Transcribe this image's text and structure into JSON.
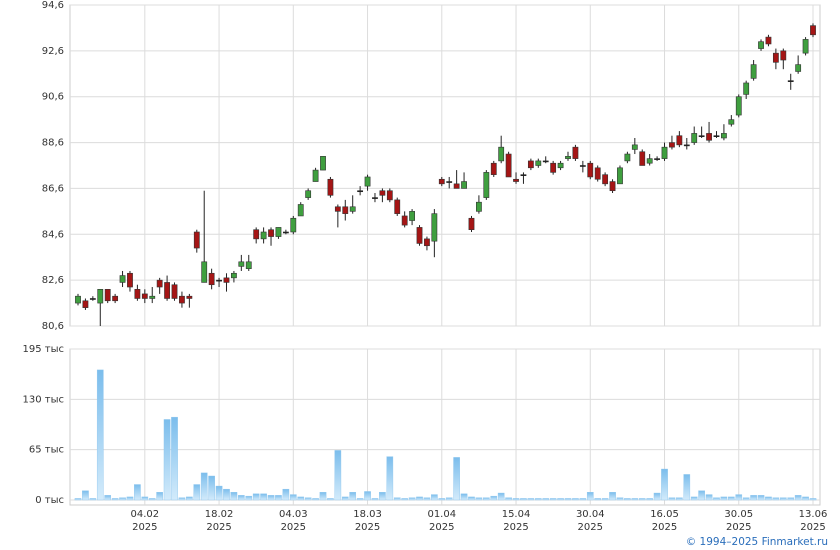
{
  "chart_data": [
    {
      "type": "candlestick",
      "up_color": "#3f9f3f",
      "down_color": "#a51515",
      "grid": true,
      "ylim": [
        80.6,
        94.6
      ],
      "yticks": [
        {
          "value": 80.6,
          "label": "80,6"
        },
        {
          "value": 82.6,
          "label": "82,6"
        },
        {
          "value": 84.6,
          "label": "84,6"
        },
        {
          "value": 86.6,
          "label": "86,6"
        },
        {
          "value": 88.6,
          "label": "88,6"
        },
        {
          "value": 90.6,
          "label": "90,6"
        },
        {
          "value": 92.6,
          "label": "92,6"
        },
        {
          "value": 94.6,
          "label": "94,6"
        }
      ],
      "open": [
        81.6,
        81.7,
        81.8,
        81.6,
        82.2,
        81.9,
        82.5,
        82.9,
        82.2,
        82.0,
        81.8,
        82.6,
        82.5,
        82.4,
        81.9,
        81.9,
        84.7,
        82.5,
        82.9,
        82.6,
        82.7,
        82.7,
        83.2,
        83.1,
        84.8,
        84.4,
        84.8,
        84.5,
        84.7,
        84.7,
        85.4,
        86.2,
        86.9,
        87.4,
        87.0,
        85.8,
        85.8,
        85.6,
        86.5,
        86.7,
        86.2,
        86.5,
        86.5,
        86.1,
        85.4,
        85.2,
        84.9,
        84.4,
        84.3,
        87.0,
        86.9,
        86.8,
        86.6,
        85.3,
        85.6,
        86.2,
        87.7,
        87.8,
        88.1,
        87.0,
        87.2,
        87.8,
        87.6,
        87.8,
        87.7,
        87.5,
        87.9,
        88.4,
        87.6,
        87.7,
        87.5,
        87.2,
        86.9,
        86.8,
        87.8,
        88.3,
        88.2,
        87.7,
        87.9,
        87.9,
        88.6,
        88.9,
        88.5,
        88.6,
        88.9,
        89.0,
        88.9,
        88.8,
        89.4,
        89.8,
        90.7,
        91.4,
        92.7,
        93.2,
        92.5,
        92.6,
        91.3,
        91.7,
        92.5,
        93.7
      ],
      "high": [
        82.0,
        81.8,
        81.9,
        82.2,
        82.2,
        82.0,
        83.0,
        83.0,
        82.4,
        82.2,
        82.3,
        82.7,
        82.8,
        82.5,
        82.1,
        82.0,
        84.8,
        86.5,
        83.1,
        82.7,
        82.9,
        83.0,
        83.7,
        83.7,
        84.9,
        84.9,
        84.9,
        84.9,
        84.8,
        85.4,
        86.0,
        86.6,
        87.5,
        88.0,
        87.1,
        85.9,
        86.1,
        86.3,
        86.7,
        87.2,
        86.4,
        86.6,
        86.6,
        86.2,
        85.6,
        85.7,
        85.0,
        84.5,
        85.7,
        87.1,
        87.1,
        87.4,
        87.3,
        85.4,
        86.3,
        87.4,
        87.8,
        88.9,
        88.2,
        87.3,
        87.3,
        87.9,
        87.9,
        88.0,
        87.8,
        87.8,
        88.2,
        88.5,
        87.8,
        87.8,
        87.6,
        87.3,
        87.0,
        87.6,
        88.2,
        88.8,
        88.3,
        88.1,
        88.0,
        88.6,
        88.9,
        89.1,
        88.8,
        89.3,
        89.3,
        89.5,
        89.1,
        89.4,
        89.8,
        90.7,
        91.3,
        92.2,
        93.1,
        93.3,
        92.7,
        92.7,
        91.6,
        92.4,
        93.2,
        93.8
      ],
      "low": [
        81.5,
        81.3,
        81.7,
        80.6,
        81.6,
        81.6,
        82.3,
        82.1,
        81.7,
        81.6,
        81.6,
        82.0,
        81.7,
        81.7,
        81.4,
        81.4,
        83.8,
        82.5,
        82.2,
        82.3,
        82.1,
        82.5,
        83.0,
        83.0,
        84.2,
        84.2,
        84.1,
        84.4,
        84.6,
        84.6,
        85.4,
        86.1,
        86.9,
        87.4,
        86.2,
        84.9,
        85.2,
        85.5,
        86.3,
        86.5,
        86.0,
        86.0,
        86.0,
        85.4,
        84.9,
        85.0,
        84.1,
        83.9,
        83.6,
        86.7,
        86.6,
        86.6,
        86.6,
        84.7,
        85.5,
        86.1,
        87.1,
        87.7,
        87.1,
        86.8,
        86.8,
        87.4,
        87.5,
        87.7,
        87.2,
        87.4,
        87.8,
        87.8,
        87.3,
        87.0,
        86.9,
        86.7,
        86.4,
        86.8,
        87.7,
        88.1,
        87.6,
        87.6,
        87.8,
        87.8,
        88.3,
        88.4,
        88.3,
        88.5,
        88.8,
        88.6,
        88.8,
        88.7,
        89.3,
        89.7,
        90.5,
        91.3,
        92.6,
        92.8,
        91.8,
        91.8,
        90.9,
        91.6,
        92.4,
        93.2
      ],
      "close": [
        81.9,
        81.4,
        81.8,
        82.2,
        81.7,
        81.7,
        82.8,
        82.3,
        81.8,
        81.8,
        81.9,
        82.3,
        81.8,
        81.8,
        81.6,
        81.8,
        84.0,
        83.4,
        82.4,
        82.6,
        82.5,
        82.9,
        83.4,
        83.4,
        84.4,
        84.7,
        84.5,
        84.9,
        84.7,
        85.3,
        85.9,
        86.5,
        87.4,
        88.0,
        86.3,
        85.6,
        85.5,
        85.8,
        86.5,
        87.1,
        86.2,
        86.3,
        86.1,
        85.5,
        85.0,
        85.6,
        84.2,
        84.1,
        85.5,
        86.8,
        86.9,
        86.6,
        86.9,
        84.8,
        86.0,
        87.3,
        87.2,
        88.4,
        87.1,
        86.9,
        87.2,
        87.5,
        87.8,
        87.8,
        87.3,
        87.7,
        88.0,
        87.9,
        87.6,
        87.1,
        87.0,
        86.8,
        86.5,
        87.5,
        88.1,
        88.5,
        87.6,
        87.9,
        87.9,
        88.4,
        88.4,
        88.5,
        88.5,
        89.0,
        88.9,
        88.7,
        88.9,
        89.0,
        89.6,
        90.6,
        91.2,
        92.0,
        93.0,
        92.9,
        92.1,
        92.2,
        91.3,
        92.0,
        93.1,
        93.3
      ]
    },
    {
      "type": "bar",
      "color": "#8ec6ee",
      "grid": true,
      "ylim": [
        0,
        195
      ],
      "yticks": [
        {
          "value": 0,
          "label": "0 тыс"
        },
        {
          "value": 65,
          "label": "65 тыс"
        },
        {
          "value": 130,
          "label": "130 тыс"
        },
        {
          "value": 195,
          "label": "195 тыс"
        }
      ],
      "categories": [
        null,
        null,
        null,
        null,
        null,
        null,
        null,
        null,
        null,
        "04.02\n2025",
        null,
        null,
        null,
        null,
        null,
        null,
        null,
        null,
        null,
        "18.02\n2025",
        null,
        null,
        null,
        null,
        null,
        null,
        null,
        null,
        null,
        "04.03\n2025",
        null,
        null,
        null,
        null,
        null,
        null,
        null,
        null,
        null,
        "18.03\n2025",
        null,
        null,
        null,
        null,
        null,
        null,
        null,
        null,
        null,
        "01.04\n2025",
        null,
        null,
        null,
        null,
        null,
        null,
        null,
        null,
        null,
        "15.04\n2025",
        null,
        null,
        null,
        null,
        null,
        null,
        null,
        null,
        null,
        "30.04\n2025",
        null,
        null,
        null,
        null,
        null,
        null,
        null,
        null,
        null,
        "16.05\n2025",
        null,
        null,
        null,
        null,
        null,
        null,
        null,
        null,
        null,
        "30.05\n2025",
        null,
        null,
        null,
        null,
        null,
        null,
        null,
        null,
        null,
        "13.06\n2025"
      ],
      "values": [
        2,
        12,
        2,
        168,
        6,
        2,
        3,
        4,
        20,
        4,
        2,
        10,
        104,
        107,
        3,
        4,
        20,
        35,
        31,
        18,
        14,
        10,
        6,
        5,
        8,
        8,
        6,
        6,
        14,
        7,
        4,
        3,
        2,
        10,
        2,
        64,
        4,
        10,
        2,
        11,
        2,
        10,
        56,
        3,
        2,
        3,
        4,
        3,
        7,
        2,
        3,
        55,
        8,
        4,
        3,
        3,
        5,
        9,
        3,
        2,
        2,
        2,
        2,
        2,
        2,
        2,
        2,
        2,
        2,
        10,
        2,
        2,
        10,
        3,
        2,
        2,
        2,
        2,
        9,
        40,
        3,
        3,
        33,
        4,
        12,
        7,
        3,
        4,
        4,
        7,
        3,
        6,
        6,
        4,
        3,
        3,
        3,
        6,
        4,
        2
      ]
    }
  ],
  "footer": "© 1994–2025 Finmarket.ru"
}
